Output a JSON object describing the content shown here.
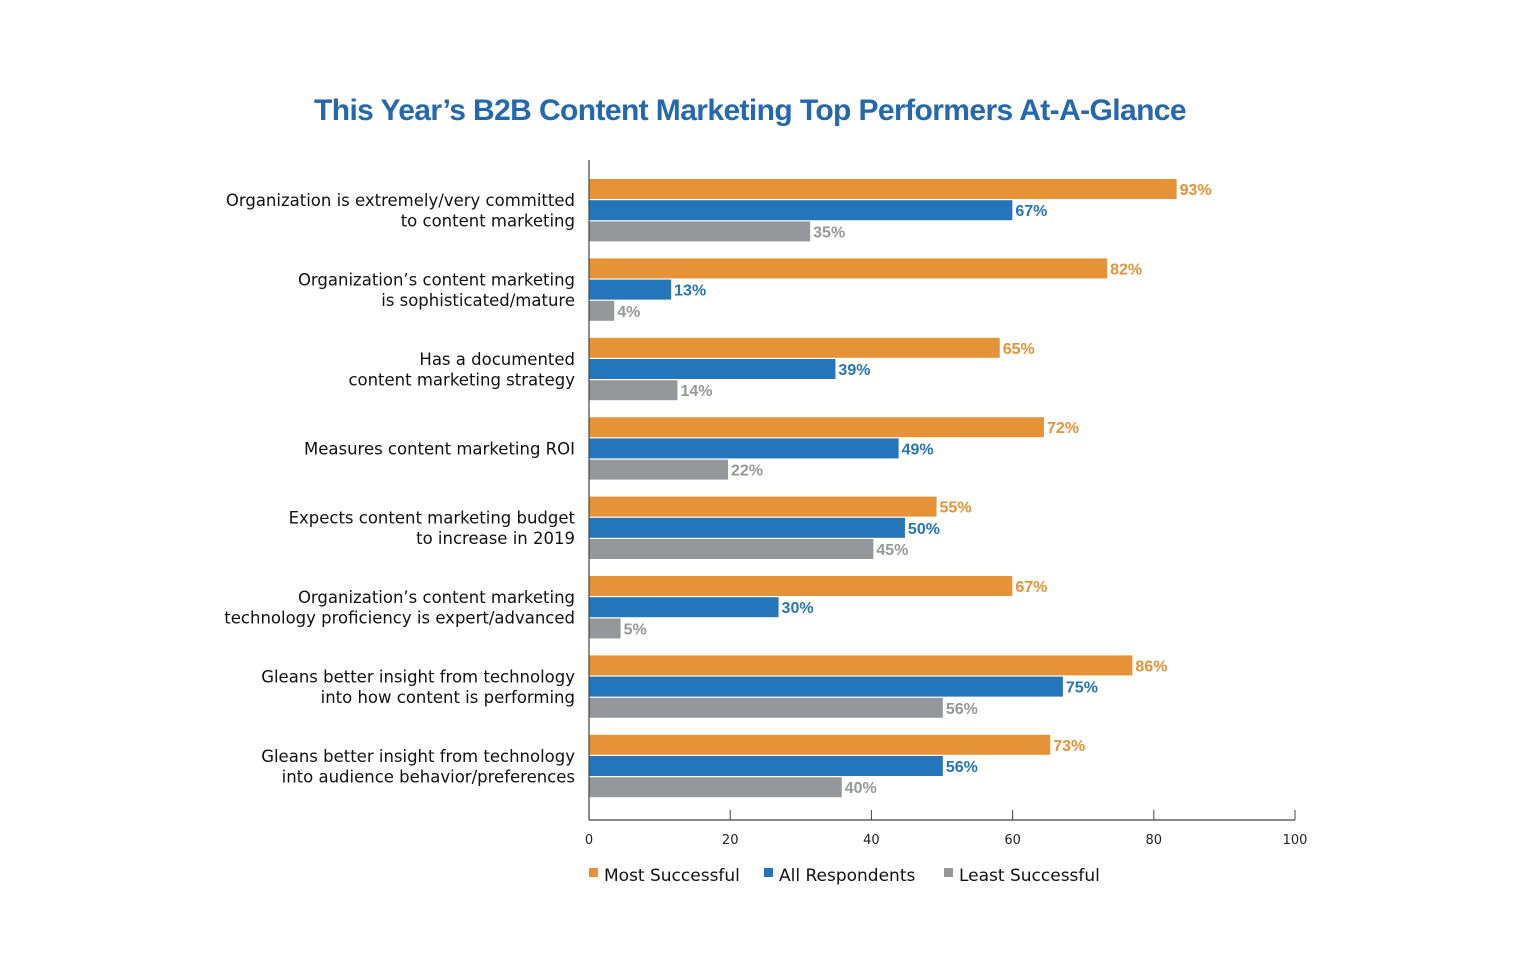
{
  "chart_data": {
    "type": "bar",
    "orientation": "horizontal",
    "title": "This Year’s B2B Content Marketing Top Performers At-A-Glance",
    "title_color": "#2468AE",
    "xlabel": "",
    "ylabel": "",
    "xlim": [
      0,
      100
    ],
    "xticks": [
      "0",
      "20",
      "40",
      "60",
      "80",
      "100"
    ],
    "grid": false,
    "legend_position": "bottom",
    "value_suffix": "%",
    "categories": [
      [
        "Organization is extremely/very committed",
        "to content marketing"
      ],
      [
        "Organization’s content marketing",
        "is sophisticated/mature"
      ],
      [
        "Has a documented",
        "content marketing strategy"
      ],
      [
        "Measures content marketing ROI"
      ],
      [
        "Expects content marketing budget",
        "to increase in 2019"
      ],
      [
        "Organization’s content marketing",
        "technology proficiency is expert/advanced"
      ],
      [
        "Gleans better insight from technology",
        "into how content is performing"
      ],
      [
        "Gleans better insight from technology",
        "into audience behavior/preferences"
      ]
    ],
    "series": [
      {
        "name": "Most Successful",
        "color": "#E69236",
        "values": [
          93,
          82,
          65,
          72,
          55,
          67,
          86,
          73
        ]
      },
      {
        "name": "All Respondents",
        "color": "#2575BA",
        "values": [
          67,
          13,
          39,
          49,
          50,
          30,
          75,
          56
        ]
      },
      {
        "name": "Least Successful",
        "color": "#96979A",
        "values": [
          35,
          4,
          14,
          22,
          45,
          5,
          56,
          40
        ]
      }
    ]
  }
}
